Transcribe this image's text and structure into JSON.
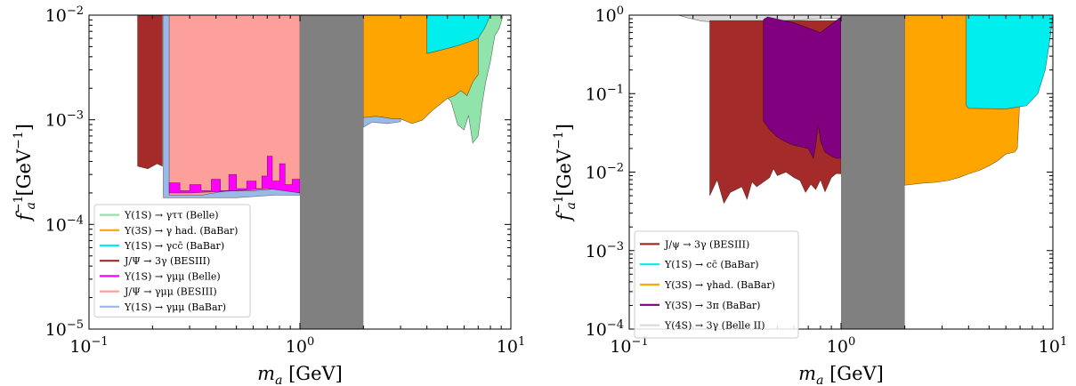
{
  "chart_data": [
    {
      "type": "area",
      "xscale": "log",
      "yscale": "log",
      "xlim": [
        0.1,
        10
      ],
      "ylim": [
        1e-05,
        0.01
      ],
      "xlabel": "m_a [GeV]",
      "ylabel": "f_a^-1 [GeV^-1]",
      "xticks": [
        "10^-1",
        "10^0",
        "10^1"
      ],
      "yticks": [
        "10^-5",
        "10^-4",
        "10^-3",
        "10^-2"
      ],
      "legend_position": "lower-left",
      "excluded_band": {
        "x": [
          1,
          2
        ],
        "color": "#808080"
      },
      "series": [
        {
          "name": "Υ(1S) → γττ (Belle)",
          "color": "#90e4ab",
          "lower": [
            [
              4.0,
              0.00088
            ],
            [
              5.0,
              0.0008
            ],
            [
              6.0,
              0.0007
            ],
            [
              7.0,
              0.0006
            ],
            [
              8.0,
              0.0013
            ],
            [
              9.2,
              0.01
            ]
          ]
        },
        {
          "name": "Υ(3S) → γ had. (BaBar)",
          "color": "#ffa500",
          "lower": [
            [
              2.0,
              0.00105
            ],
            [
              2.5,
              0.00108
            ],
            [
              3.0,
              0.00103
            ],
            [
              4.0,
              0.0009
            ],
            [
              5.0,
              0.0017
            ],
            [
              6.0,
              0.0018
            ],
            [
              7.0,
              0.0025
            ],
            [
              8.0,
              0.0055
            ],
            [
              9.0,
              0.01
            ]
          ]
        },
        {
          "name": "Υ(1S) → γcc̄ (BaBar)",
          "color": "#00eeee",
          "lower": [
            [
              4.0,
              0.0043
            ],
            [
              5.0,
              0.0048
            ],
            [
              6.0,
              0.0052
            ],
            [
              7.0,
              0.006
            ],
            [
              8.0,
              0.01
            ]
          ]
        },
        {
          "name": "J/Ψ → 3γ (BESIII)",
          "color": "#a52a2a",
          "lower": [
            [
              0.17,
              0.00036
            ],
            [
              0.2,
              0.00034
            ],
            [
              0.22,
              0.0004
            ],
            [
              0.23,
              0.01
            ]
          ]
        },
        {
          "name": "Υ(1S) → γμμ (Belle)",
          "color": "#ff00ff",
          "lower": [
            [
              0.24,
              0.0002
            ],
            [
              0.4,
              0.00025
            ],
            [
              0.55,
              0.0003
            ],
            [
              0.7,
              0.0005
            ],
            [
              1.0,
              0.00022
            ]
          ]
        },
        {
          "name": "J/Ψ → γμμ (BESIII)",
          "color": "#fda09b",
          "lower": [
            [
              0.22,
              0.00019
            ],
            [
              0.4,
              0.0002
            ],
            [
              0.7,
              0.00021
            ],
            [
              1.0,
              0.00019
            ]
          ]
        },
        {
          "name": "Υ(1S) → γμμ (BaBar)",
          "color": "#9ab8e8",
          "lower": [
            [
              0.22,
              0.00018
            ],
            [
              0.5,
              0.00018
            ],
            [
              0.8,
              0.0002
            ],
            [
              1.0,
              0.00019
            ],
            [
              2.0,
              0.0008
            ],
            [
              3.0,
              0.0009
            ]
          ]
        }
      ]
    },
    {
      "type": "area",
      "xscale": "log",
      "yscale": "log",
      "xlim": [
        0.1,
        10
      ],
      "ylim": [
        0.0001,
        1
      ],
      "xlabel": "m_a [GeV]",
      "ylabel": "f_a^-1 [GeV^-1]",
      "xticks": [
        "10^-1",
        "10^0",
        "10^1"
      ],
      "yticks": [
        "10^-4",
        "10^-3",
        "10^-2",
        "10^-1",
        "10^0"
      ],
      "legend_position": "lower-left",
      "excluded_band": {
        "x": [
          1,
          2
        ],
        "color": "#808080"
      },
      "series": [
        {
          "name": "J/ψ → 3γ (BESIII)",
          "color": "#a52a2a",
          "lower": [
            [
              0.24,
              0.005
            ],
            [
              0.3,
              0.006
            ],
            [
              0.4,
              0.007
            ],
            [
              0.5,
              0.008
            ],
            [
              0.6,
              0.007
            ],
            [
              0.8,
              0.009
            ],
            [
              1.0,
              0.01
            ]
          ]
        },
        {
          "name": "Υ(1S) → cc̄ (BaBar)",
          "color": "#00eeee",
          "lower": [
            [
              4.0,
              0.065
            ],
            [
              6.0,
              0.065
            ],
            [
              8.0,
              0.08
            ],
            [
              10.0,
              1.0
            ]
          ]
        },
        {
          "name": "Υ(3S) → γhad. (BaBar)",
          "color": "#ffa500",
          "lower": [
            [
              2.0,
              0.007
            ],
            [
              3.0,
              0.008
            ],
            [
              4.0,
              0.01
            ],
            [
              6.0,
              0.012
            ],
            [
              7.0,
              0.02
            ]
          ]
        },
        {
          "name": "Υ(3S) → 3π (BaBar)",
          "color": "#800080",
          "lower": [
            [
              0.42,
              0.04
            ],
            [
              0.5,
              0.025
            ],
            [
              0.6,
              0.025
            ],
            [
              0.8,
              0.02
            ],
            [
              1.0,
              0.015
            ]
          ]
        },
        {
          "name": "Υ(4S) → 3γ (Belle II)",
          "color": "#dcdcdc",
          "lower": [
            [
              0.2,
              0.9
            ],
            [
              0.3,
              0.75
            ],
            [
              0.5,
              0.8
            ],
            [
              0.8,
              0.85
            ],
            [
              1.0,
              0.9
            ]
          ]
        }
      ]
    }
  ]
}
